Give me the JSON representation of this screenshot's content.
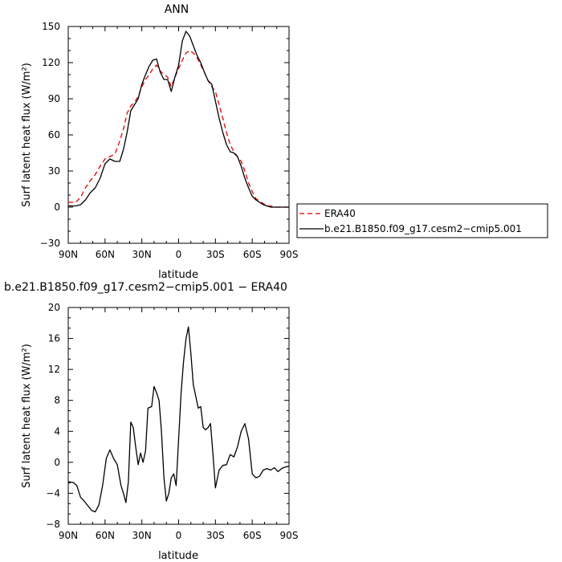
{
  "chart_data": [
    {
      "type": "line",
      "title": "ANN",
      "xlabel": "latitude",
      "ylabel": "Surf latent heat flux (W/m²)",
      "xlim": [
        90,
        -90
      ],
      "ylim": [
        -30,
        150
      ],
      "xticks": [
        90,
        60,
        30,
        0,
        -30,
        -60,
        -90
      ],
      "xtick_labels": [
        "90N",
        "60N",
        "30N",
        "0",
        "30S",
        "60S",
        "90S"
      ],
      "yticks": [
        -30,
        0,
        30,
        60,
        90,
        120,
        150
      ],
      "ytick_labels": [
        "−30",
        "0",
        "30",
        "60",
        "90",
        "120",
        "150"
      ],
      "legend": "right",
      "series": [
        {
          "name": "ERA40",
          "style": "dashed",
          "color": "#e00000",
          "x": [
            90,
            84,
            80,
            76,
            72,
            68,
            64,
            60,
            56,
            52,
            48,
            45,
            42,
            39,
            36,
            33,
            30,
            27,
            24,
            21,
            18,
            15,
            12,
            9,
            6,
            3,
            0,
            -3,
            -6,
            -9,
            -12,
            -15,
            -18,
            -21,
            -24,
            -27,
            -30,
            -33,
            -36,
            -39,
            -42,
            -45,
            -48,
            -51,
            -54,
            -57,
            -60,
            -63,
            -66,
            -69,
            -72,
            -75,
            -78,
            -81,
            -84,
            -87,
            -90
          ],
          "y": [
            4,
            4,
            8,
            16,
            22,
            27,
            34,
            40,
            42,
            44,
            55,
            65,
            78,
            84,
            87,
            92,
            100,
            106,
            110,
            115,
            118,
            113,
            110,
            108,
            100,
            108,
            115,
            122,
            128,
            130,
            128,
            124,
            118,
            112,
            105,
            100,
            96,
            85,
            74,
            62,
            52,
            46,
            42,
            38,
            30,
            20,
            13,
            7,
            5,
            3,
            1,
            1,
            0,
            0,
            0,
            0,
            0
          ]
        },
        {
          "name": "b.e21.B1850.f09_g17.cesm2−cmip5.001",
          "style": "solid",
          "color": "#000000",
          "x": [
            90,
            84,
            80,
            76,
            72,
            68,
            64,
            60,
            56,
            52,
            48,
            45,
            42,
            39,
            36,
            33,
            30,
            27,
            24,
            21,
            18,
            15,
            12,
            9,
            6,
            3,
            0,
            -3,
            -6,
            -9,
            -12,
            -15,
            -18,
            -21,
            -24,
            -27,
            -30,
            -33,
            -36,
            -39,
            -42,
            -45,
            -48,
            -51,
            -54,
            -57,
            -60,
            -63,
            -66,
            -69,
            -72,
            -75,
            -78,
            -81,
            -84,
            -87,
            -90
          ],
          "y": [
            1,
            1,
            2,
            6,
            12,
            16,
            24,
            36,
            40,
            38,
            38,
            48,
            62,
            80,
            85,
            90,
            102,
            110,
            117,
            122,
            123,
            112,
            106,
            106,
            96,
            108,
            118,
            138,
            146,
            142,
            134,
            126,
            120,
            112,
            105,
            102,
            88,
            74,
            62,
            52,
            46,
            45,
            42,
            34,
            24,
            16,
            9,
            6,
            4,
            2,
            1,
            0,
            0,
            0,
            0,
            0,
            0
          ]
        }
      ]
    },
    {
      "type": "line",
      "title": "b.e21.B1850.f09_g17.cesm2−cmip5.001 − ERA40",
      "xlabel": "latitude",
      "ylabel": "Surf latent heat flux (W/m²)",
      "xlim": [
        90,
        -90
      ],
      "ylim": [
        -8,
        20
      ],
      "xticks": [
        90,
        60,
        30,
        0,
        -30,
        -60,
        -90
      ],
      "xtick_labels": [
        "90N",
        "60N",
        "30N",
        "0",
        "30S",
        "60S",
        "90S"
      ],
      "yticks": [
        -8,
        -4,
        0,
        4,
        8,
        12,
        16,
        20
      ],
      "ytick_labels": [
        "−8",
        "−4",
        "0",
        "4",
        "8",
        "12",
        "16",
        "20"
      ],
      "series": [
        {
          "name": "",
          "style": "solid",
          "color": "#000000",
          "x": [
            90,
            86,
            83,
            80,
            77,
            74,
            71,
            68,
            65,
            62,
            59,
            56,
            53,
            50,
            47,
            45,
            43,
            41,
            39,
            37,
            35,
            33,
            31,
            29,
            27,
            25,
            22,
            20,
            18,
            16,
            14,
            12,
            10,
            8,
            6,
            4,
            2,
            0,
            -2,
            -4,
            -6,
            -8,
            -10,
            -12,
            -14,
            -16,
            -18,
            -20,
            -22,
            -24,
            -26,
            -28,
            -30,
            -33,
            -36,
            -39,
            -42,
            -45,
            -48,
            -51,
            -54,
            -57,
            -60,
            -63,
            -66,
            -69,
            -72,
            -75,
            -78,
            -81,
            -84,
            -87,
            -90
          ],
          "y": [
            -2.5,
            -2.6,
            -3.0,
            -4.5,
            -5.0,
            -5.6,
            -6.2,
            -6.4,
            -5.5,
            -3.0,
            0.5,
            1.6,
            0.5,
            -0.3,
            -3.0,
            -4.0,
            -5.2,
            -2.5,
            5.2,
            4.5,
            2.0,
            -0.3,
            1.2,
            0.0,
            1.5,
            7.0,
            7.2,
            9.8,
            9.0,
            8.0,
            4.0,
            -2.0,
            -5.0,
            -4.0,
            -2.0,
            -1.5,
            -3.0,
            3.0,
            9.0,
            13.0,
            16.0,
            17.5,
            14.0,
            10.0,
            8.5,
            7.0,
            7.2,
            4.5,
            4.2,
            4.5,
            5.0,
            1.0,
            -3.3,
            -1.0,
            -0.4,
            -0.3,
            1.0,
            0.7,
            2.0,
            4.0,
            5.0,
            3.0,
            -1.5,
            -2.0,
            -1.8,
            -1.0,
            -0.8,
            -1.0,
            -0.7,
            -1.2,
            -0.8,
            -0.6,
            -0.5
          ]
        }
      ]
    }
  ]
}
